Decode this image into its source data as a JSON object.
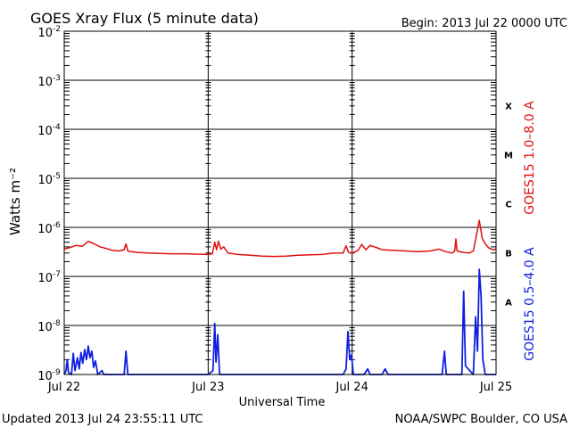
{
  "header": {
    "title": "GOES Xray Flux (5 minute data)",
    "begin": "Begin:  2013 Jul 22 0000 UTC"
  },
  "footer": {
    "updated": "Updated 2013 Jul 24 23:55:11 UTC",
    "credit": "NOAA/SWPC Boulder, CO USA"
  },
  "chart_data": {
    "type": "line",
    "title": "GOES Xray Flux (5 minute data)",
    "xlabel": "Universal Time",
    "ylabel": "Watts m⁻²",
    "yscale": "log",
    "ylim": [
      1e-09,
      0.01
    ],
    "xlim": [
      0,
      72
    ],
    "x_unit": "hours since 2013 Jul 22 0000 UTC",
    "x_ticks": [
      {
        "x": 0,
        "label": "Jul 22"
      },
      {
        "x": 24,
        "label": "Jul 23"
      },
      {
        "x": 48,
        "label": "Jul 24"
      },
      {
        "x": 72,
        "label": "Jul 25"
      }
    ],
    "y_ticks": [
      {
        "exp": -2,
        "base": "10",
        "sup": "-2"
      },
      {
        "exp": -3,
        "base": "10",
        "sup": "-3"
      },
      {
        "exp": -4,
        "base": "10",
        "sup": "-4"
      },
      {
        "exp": -5,
        "base": "10",
        "sup": "-5"
      },
      {
        "exp": -6,
        "base": "10",
        "sup": "-6"
      },
      {
        "exp": -7,
        "base": "10",
        "sup": "-7"
      },
      {
        "exp": -8,
        "base": "10",
        "sup": "-8"
      },
      {
        "exp": -9,
        "base": "10",
        "sup": "-9"
      }
    ],
    "flare_classes": [
      {
        "label": "X",
        "exp": -4
      },
      {
        "label": "M",
        "exp": -5
      },
      {
        "label": "C",
        "exp": -6
      },
      {
        "label": "B",
        "exp": -7
      },
      {
        "label": "A",
        "exp": -8
      }
    ],
    "grid": true,
    "series": [
      {
        "name": "GOES15 1.0–8.0 A",
        "color": "#e01010",
        "points": [
          [
            0,
            3.6e-07
          ],
          [
            1,
            3.9e-07
          ],
          [
            2,
            4.3e-07
          ],
          [
            3,
            4.1e-07
          ],
          [
            4,
            5.2e-07
          ],
          [
            5,
            4.6e-07
          ],
          [
            6,
            4e-07
          ],
          [
            7,
            3.7e-07
          ],
          [
            8,
            3.4e-07
          ],
          [
            9,
            3.3e-07
          ],
          [
            10,
            3.5e-07
          ],
          [
            10.3,
            4.6e-07
          ],
          [
            10.6,
            3.3e-07
          ],
          [
            12,
            3.1e-07
          ],
          [
            14,
            3e-07
          ],
          [
            16,
            2.95e-07
          ],
          [
            18,
            2.9e-07
          ],
          [
            20,
            2.9e-07
          ],
          [
            22,
            2.85e-07
          ],
          [
            24,
            2.8e-07
          ],
          [
            24.7,
            2.9e-07
          ],
          [
            25.1,
            5e-07
          ],
          [
            25.4,
            3.5e-07
          ],
          [
            25.7,
            5.2e-07
          ],
          [
            26.1,
            3.6e-07
          ],
          [
            26.6,
            4e-07
          ],
          [
            27.3,
            3e-07
          ],
          [
            29,
            2.8e-07
          ],
          [
            31,
            2.7e-07
          ],
          [
            33,
            2.6e-07
          ],
          [
            35,
            2.55e-07
          ],
          [
            37,
            2.6e-07
          ],
          [
            39,
            2.7e-07
          ],
          [
            41,
            2.75e-07
          ],
          [
            43,
            2.8e-07
          ],
          [
            45,
            3e-07
          ],
          [
            46.5,
            3e-07
          ],
          [
            47,
            4.2e-07
          ],
          [
            47.4,
            3.1e-07
          ],
          [
            48,
            3e-07
          ],
          [
            49,
            3.4e-07
          ],
          [
            49.6,
            4.5e-07
          ],
          [
            50.3,
            3.5e-07
          ],
          [
            51,
            4.3e-07
          ],
          [
            52,
            3.9e-07
          ],
          [
            53,
            3.5e-07
          ],
          [
            55,
            3.4e-07
          ],
          [
            57,
            3.3e-07
          ],
          [
            59,
            3.2e-07
          ],
          [
            61,
            3.3e-07
          ],
          [
            62.5,
            3.6e-07
          ],
          [
            63.6,
            3.2e-07
          ],
          [
            64.7,
            3e-07
          ],
          [
            65.1,
            3.3e-07
          ],
          [
            65.3,
            5.8e-07
          ],
          [
            65.5,
            3.3e-07
          ],
          [
            66.5,
            3.1e-07
          ],
          [
            67.5,
            3e-07
          ],
          [
            68.2,
            3.3e-07
          ],
          [
            68.6,
            5.6e-07
          ],
          [
            68.9,
            9e-07
          ],
          [
            69.2,
            1.4e-06
          ],
          [
            69.4,
            1e-06
          ],
          [
            69.7,
            6e-07
          ],
          [
            70.2,
            4.6e-07
          ],
          [
            70.8,
            3.8e-07
          ],
          [
            71.5,
            3.5e-07
          ],
          [
            72,
            3.6e-07
          ]
        ]
      },
      {
        "name": "GOES15 0.5–4.0 A",
        "color": "#1020e0",
        "points": [
          [
            0,
            1e-09
          ],
          [
            0.3,
            1.2e-09
          ],
          [
            0.5,
            2e-09
          ],
          [
            0.7,
            1.1e-09
          ],
          [
            1.2,
            1e-09
          ],
          [
            1.5,
            2.7e-09
          ],
          [
            1.8,
            1.2e-09
          ],
          [
            2.2,
            2.2e-09
          ],
          [
            2.5,
            1.3e-09
          ],
          [
            2.8,
            2.8e-09
          ],
          [
            3.1,
            1.7e-09
          ],
          [
            3.4,
            3.2e-09
          ],
          [
            3.7,
            2e-09
          ],
          [
            4.0,
            3.8e-09
          ],
          [
            4.3,
            2.2e-09
          ],
          [
            4.6,
            3e-09
          ],
          [
            4.9,
            1.4e-09
          ],
          [
            5.2,
            1.9e-09
          ],
          [
            5.6,
            1e-09
          ],
          [
            6.3,
            1.2e-09
          ],
          [
            6.6,
            1e-09
          ],
          [
            10,
            1e-09
          ],
          [
            10.3,
            3e-09
          ],
          [
            10.6,
            1e-09
          ],
          [
            24,
            1e-09
          ],
          [
            24.8,
            1.2e-09
          ],
          [
            25.1,
            1.1e-08
          ],
          [
            25.3,
            1.8e-09
          ],
          [
            25.6,
            6.5e-09
          ],
          [
            25.9,
            1e-09
          ],
          [
            46.5,
            1e-09
          ],
          [
            47,
            1.3e-09
          ],
          [
            47.3,
            7.5e-09
          ],
          [
            47.6,
            2e-09
          ],
          [
            47.9,
            2.5e-09
          ],
          [
            48.2,
            1e-09
          ],
          [
            50,
            1e-09
          ],
          [
            50.6,
            1.3e-09
          ],
          [
            51,
            1e-09
          ],
          [
            53,
            1e-09
          ],
          [
            53.5,
            1.3e-09
          ],
          [
            54,
            1e-09
          ],
          [
            63,
            1e-09
          ],
          [
            63.4,
            3e-09
          ],
          [
            63.7,
            1e-09
          ],
          [
            66.3,
            1e-09
          ],
          [
            66.6,
            5e-08
          ],
          [
            66.9,
            1.5e-09
          ],
          [
            68.2,
            1e-09
          ],
          [
            68.6,
            1.5e-08
          ],
          [
            68.9,
            3e-09
          ],
          [
            69.2,
            1.4e-07
          ],
          [
            69.5,
            4e-08
          ],
          [
            69.8,
            2e-09
          ],
          [
            70.2,
            1e-09
          ],
          [
            72,
            1e-09
          ]
        ]
      }
    ]
  }
}
